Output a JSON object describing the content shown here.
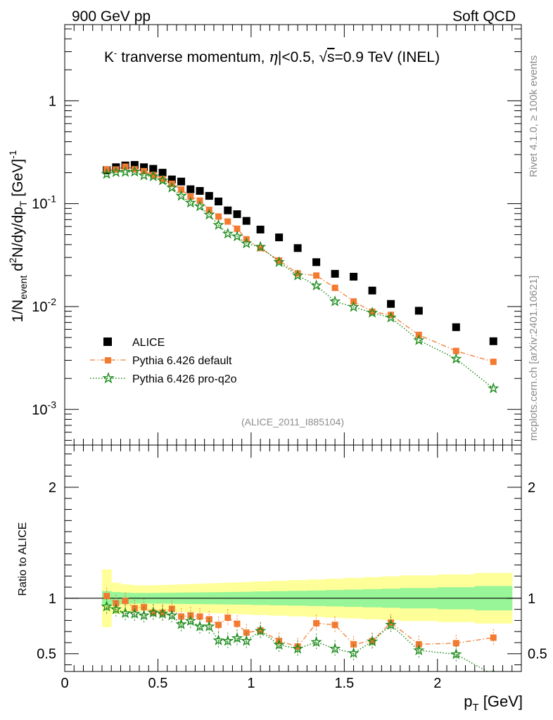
{
  "header": {
    "left": "900 GeV pp",
    "right": "Soft QCD"
  },
  "side": {
    "rivet": "Rivet 4.1.0, ≥ 100k events",
    "mcplots": "mcplots.cern.ch [arXiv:2401.10621]"
  },
  "chart_data": [
    {
      "type": "scatter",
      "title": "K⁻ tranverse momentum, |η|<0.5, √s=0.9 TeV (INEL)",
      "title_parts": {
        "k": "K",
        "sup": "-",
        "main": " tranverse momentum, ",
        "eta": "η",
        "eta_cut": "|<0.5, ",
        "sqrt": "√",
        "s": "s",
        "energy": "=0.9 TeV (INEL)"
      },
      "ylabel": "1/N_event d²N/dy/dp_T [GeV]⁻¹",
      "ylabel_parts": {
        "a": "1/N",
        "a_sub": "event",
        "b": " d",
        "b_sup": "2",
        "c": "N/dy/dp",
        "c_sub": "T",
        "d": " [GeV]",
        "d_sup": "-1"
      },
      "yscale": "log",
      "ylim": [
        0.00045,
        5.5
      ],
      "xlim": [
        0,
        2.45
      ],
      "y_tick_labels": [
        {
          "base": "10",
          "exp": "-3",
          "v": 0.001
        },
        {
          "base": "10",
          "exp": "-2",
          "v": 0.01
        },
        {
          "base": "10",
          "exp": "-1",
          "v": 0.1
        },
        {
          "base": "1",
          "exp": "",
          "v": 1
        }
      ],
      "watermark": "(ALICE_2011_I885104)",
      "legend_position": "lower-left",
      "x": [
        0.225,
        0.275,
        0.325,
        0.375,
        0.425,
        0.475,
        0.525,
        0.575,
        0.625,
        0.675,
        0.725,
        0.775,
        0.825,
        0.875,
        0.925,
        0.975,
        1.05,
        1.15,
        1.25,
        1.35,
        1.45,
        1.55,
        1.65,
        1.75,
        1.9,
        2.1,
        2.3
      ],
      "series": [
        {
          "name": "ALICE",
          "color": "#000000",
          "marker": "square",
          "values": [
            0.212,
            0.226,
            0.235,
            0.238,
            0.226,
            0.218,
            0.2,
            0.172,
            0.164,
            0.138,
            0.133,
            0.119,
            0.105,
            0.086,
            0.079,
            0.068,
            0.056,
            0.047,
            0.037,
            0.027,
            0.0208,
            0.0195,
            0.0143,
            0.0106,
            0.0091,
            0.0063,
            0.0046
          ]
        },
        {
          "name": "Pythia 6.426 default",
          "color": "#f47a30",
          "marker": "square",
          "line": "dashdot",
          "values": [
            0.215,
            0.215,
            0.229,
            0.216,
            0.207,
            0.19,
            0.174,
            0.156,
            0.137,
            0.117,
            0.107,
            0.087,
            0.075,
            0.067,
            0.057,
            0.045,
            0.037,
            0.028,
            0.021,
            0.02,
            0.0152,
            0.0112,
            0.0089,
            0.0083,
            0.0053,
            0.0037,
            0.0029
          ]
        },
        {
          "name": "Pythia 6.426 pro-q2o",
          "color": "#1e8c1e",
          "marker": "star",
          "line": "dotted",
          "values": [
            0.194,
            0.202,
            0.203,
            0.204,
            0.188,
            0.184,
            0.168,
            0.143,
            0.119,
            0.102,
            0.094,
            0.078,
            0.062,
            0.051,
            0.048,
            0.041,
            0.038,
            0.027,
            0.02,
            0.016,
            0.0112,
            0.0099,
            0.0087,
            0.0078,
            0.0047,
            0.0031,
            0.0016
          ]
        }
      ]
    },
    {
      "type": "scatter",
      "ylabel": "Ratio to ALICE",
      "xlabel": "p_T [GeV]",
      "xlabel_parts": {
        "p": "p",
        "sub": "T",
        "unit": " [GeV]"
      },
      "xlim": [
        0,
        2.45
      ],
      "ylim": [
        0.34,
        2.38
      ],
      "x_tick_labels": [
        "0",
        "0.5",
        "1",
        "1.5",
        "2"
      ],
      "y_tick_labels": [
        "0.5",
        "1",
        "2"
      ],
      "reference_line": 1,
      "uncertainty_bands": {
        "inner_color": "#98f598",
        "outer_color": "#ffff99",
        "x_edges": [
          0.2,
          0.25,
          0.3,
          0.35,
          0.4,
          0.45,
          0.5,
          0.55,
          0.6,
          0.65,
          0.7,
          0.75,
          0.8,
          0.85,
          0.9,
          0.95,
          1.0,
          1.1,
          1.2,
          1.3,
          1.4,
          1.5,
          1.6,
          1.7,
          1.8,
          2.0,
          2.2,
          2.4
        ],
        "inner_halfwidth": [
          0.065,
          0.056,
          0.051,
          0.048,
          0.048,
          0.048,
          0.049,
          0.05,
          0.051,
          0.052,
          0.053,
          0.054,
          0.055,
          0.056,
          0.057,
          0.058,
          0.061,
          0.064,
          0.067,
          0.07,
          0.074,
          0.078,
          0.082,
          0.086,
          0.092,
          0.1,
          0.11
        ],
        "outer_halfwidth": [
          0.26,
          0.14,
          0.125,
          0.118,
          0.116,
          0.117,
          0.119,
          0.122,
          0.125,
          0.128,
          0.131,
          0.134,
          0.137,
          0.14,
          0.143,
          0.146,
          0.151,
          0.157,
          0.163,
          0.169,
          0.176,
          0.183,
          0.19,
          0.197,
          0.206,
          0.215,
          0.228
        ]
      },
      "series": [
        {
          "name": "Pythia 6.426 default",
          "color": "#f47a30",
          "values": [
            1.02,
            0.955,
            0.975,
            0.91,
            0.92,
            0.87,
            0.87,
            0.905,
            0.835,
            0.845,
            0.835,
            0.81,
            0.76,
            0.825,
            0.77,
            0.69,
            0.71,
            0.615,
            0.565,
            0.775,
            0.76,
            0.585,
            0.615,
            0.78,
            0.585,
            0.595,
            0.645
          ]
        },
        {
          "name": "Pythia 6.426 pro-q2o",
          "color": "#1e8c1e",
          "values": [
            0.925,
            0.9,
            0.865,
            0.86,
            0.845,
            0.87,
            0.86,
            0.845,
            0.765,
            0.795,
            0.745,
            0.745,
            0.62,
            0.615,
            0.64,
            0.615,
            0.705,
            0.58,
            0.545,
            0.605,
            0.545,
            0.505,
            0.61,
            0.76,
            0.53,
            0.495,
            0.31
          ]
        }
      ]
    }
  ]
}
